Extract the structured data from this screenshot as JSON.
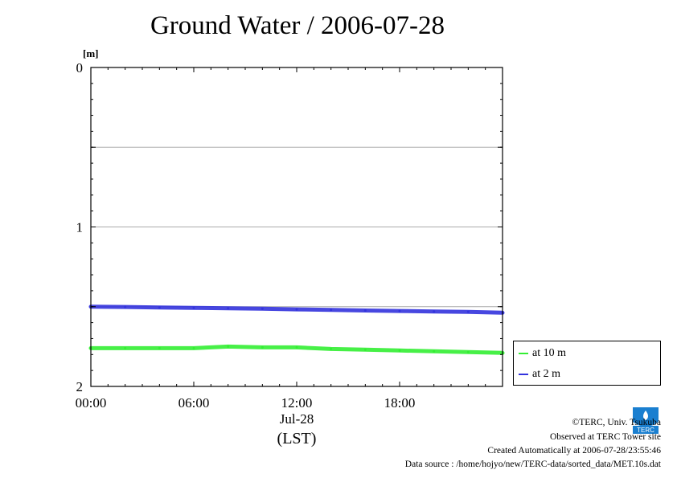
{
  "title": "Ground Water / 2006-07-28",
  "chart_data": {
    "type": "line",
    "title": "Ground Water / 2006-07-28",
    "ylabel": "[m]",
    "xlabel": "Jul-28",
    "xlabel2": "(LST)",
    "y_inverted": true,
    "ylim": [
      0,
      2
    ],
    "yticks": [
      0,
      0.5,
      1,
      1.5,
      2
    ],
    "ytick_labels": [
      "0",
      "",
      "1",
      "",
      "2"
    ],
    "xlim_hours": [
      0,
      24
    ],
    "xticks_hours": [
      0,
      6,
      12,
      18
    ],
    "xtick_labels": [
      "00:00",
      "06:00",
      "12:00",
      "18:00"
    ],
    "grid": "horizontal",
    "legend_position": "right-bottom",
    "series": [
      {
        "name": "at 10 m",
        "color": "#33ee33",
        "x_hours": [
          0,
          2,
          4,
          6,
          8,
          10,
          12,
          14,
          16,
          18,
          20,
          22,
          24
        ],
        "values": [
          1.76,
          1.76,
          1.76,
          1.76,
          1.75,
          1.755,
          1.755,
          1.765,
          1.77,
          1.775,
          1.78,
          1.785,
          1.79
        ]
      },
      {
        "name": "at 2 m",
        "color": "#3333dd",
        "x_hours": [
          0,
          2,
          4,
          6,
          8,
          10,
          12,
          14,
          16,
          18,
          20,
          22,
          24
        ],
        "values": [
          1.5,
          1.502,
          1.505,
          1.508,
          1.51,
          1.513,
          1.517,
          1.52,
          1.524,
          1.527,
          1.53,
          1.533,
          1.538
        ]
      }
    ]
  },
  "footer": {
    "copyright": "©TERC, Univ. Tsukuba",
    "observed": "Observed at TERC Tower site",
    "created": "Created Automatically at 2006-07-28/23:55:46",
    "source": "Data source : /home/hojyo/new/TERC-data/sorted_data/MET.10s.dat"
  },
  "logo": {
    "name": "terc-logo",
    "text": "TERC",
    "color": "#1a7fd0"
  }
}
